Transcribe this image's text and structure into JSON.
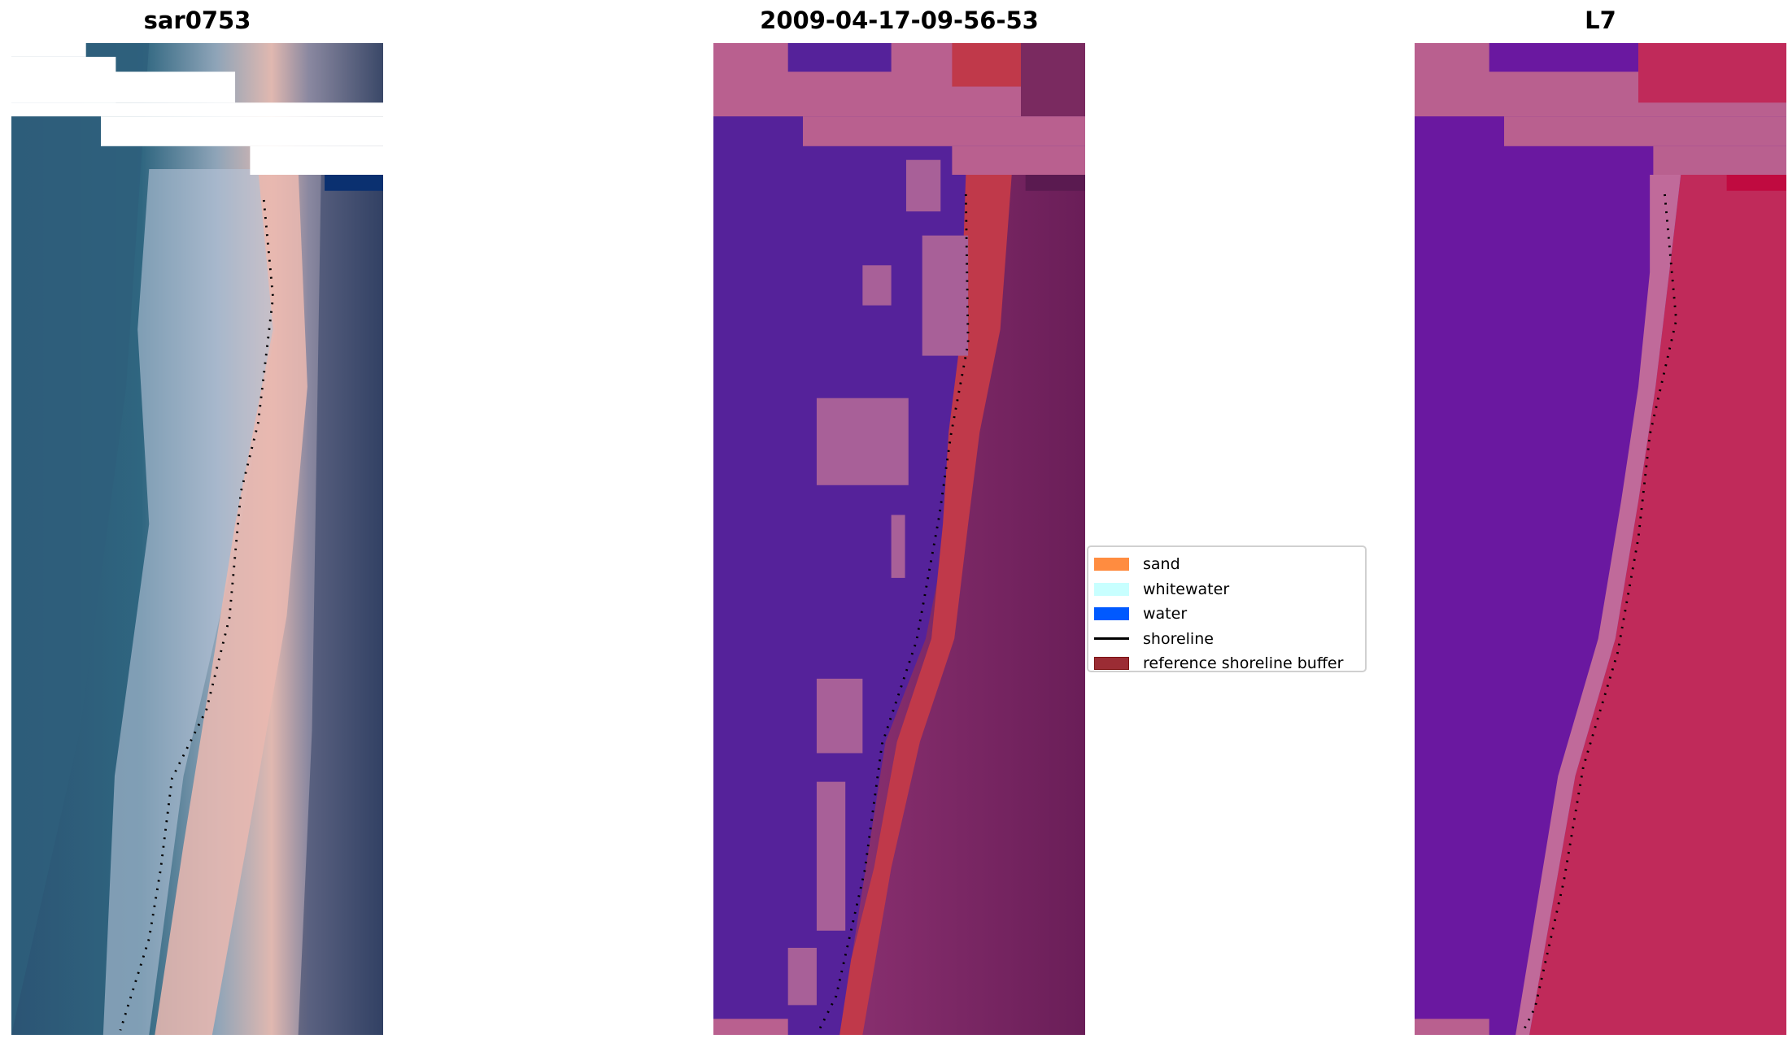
{
  "panels": [
    {
      "title": "sar0753"
    },
    {
      "title": "2009-04-17-09-56-53"
    },
    {
      "title": "L7"
    }
  ],
  "legend": {
    "items": [
      {
        "label": "sand",
        "color": "#ff8c40",
        "kind": "patch"
      },
      {
        "label": "whitewater",
        "color": "#c8ffff",
        "kind": "patch"
      },
      {
        "label": "water",
        "color": "#0059ff",
        "kind": "patch"
      },
      {
        "label": "shoreline",
        "color": "#000000",
        "kind": "line"
      },
      {
        "label": "reference shoreline buffer",
        "color": "#9b2c34",
        "kind": "patch"
      }
    ]
  }
}
